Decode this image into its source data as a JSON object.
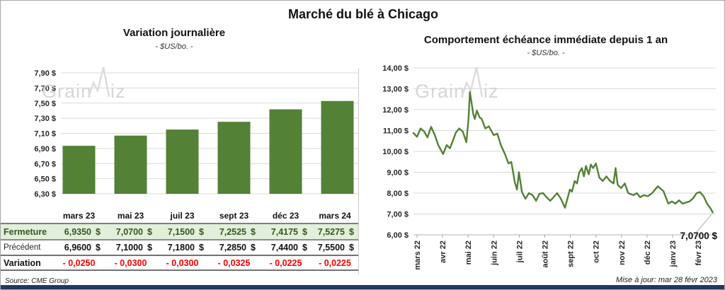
{
  "header": {
    "title": "Marché du blé à Chicago"
  },
  "footer": {
    "source": "Source: CME Group",
    "updated": "Mise à jour: mar 28 févr 2023"
  },
  "watermark": {
    "text_start": "Grain",
    "text_end": "iz"
  },
  "table": {
    "headers": [
      "mars 23",
      "mai 23",
      "juil 23",
      "sept 23",
      "déc 23",
      "mars 24"
    ],
    "rows": [
      {
        "id": "fermeture",
        "label": "Fermeture",
        "currency": "$",
        "values": [
          "6,9350",
          "7,0700",
          "7,1500",
          "7,2525",
          "7,4175",
          "7,5275"
        ]
      },
      {
        "id": "precedent",
        "label": "Précédent",
        "currency": "$",
        "values": [
          "6,9600",
          "7,1000",
          "7,1800",
          "7,2850",
          "7,4400",
          "7,5500"
        ]
      },
      {
        "id": "variation",
        "label": "Variation",
        "values": [
          "- 0,0250",
          "- 0,0300",
          "- 0,0300",
          "- 0,0325",
          "- 0,0225",
          "- 0,0225"
        ]
      }
    ]
  },
  "chart_data": [
    {
      "type": "bar",
      "title": "Variation journalière",
      "subtitle": "- $US/bo. -",
      "categories": [
        "mars 23",
        "mai 23",
        "juil 23",
        "sept 23",
        "déc 23",
        "mars 24"
      ],
      "values": [
        6.935,
        7.07,
        7.15,
        7.2525,
        7.4175,
        7.5275
      ],
      "ylim": [
        6.3,
        7.9
      ],
      "ytick_step": 0.2,
      "bar_color": "#538135",
      "grid_color": "#d9d9d9"
    },
    {
      "type": "line",
      "title": "Comportement échéance immédiate depuis 1 an",
      "subtitle": "- $US/bo. -",
      "x_labels": [
        "mars 22",
        "avr 22",
        "mai 22",
        "juin 22",
        "juil 22",
        "août 22",
        "sept 22",
        "oct 22",
        "nov 22",
        "déc 22",
        "janv 23",
        "févr 23"
      ],
      "ylim": [
        6,
        14
      ],
      "ytick_step": 1,
      "line_color": "#538135",
      "grid_color": "#d9d9d9",
      "end_label": "7,0700 $",
      "end_value": 7.07,
      "points": [
        [
          -0.14,
          10.88
        ],
        [
          0,
          10.7
        ],
        [
          0.14,
          11.1
        ],
        [
          0.28,
          10.95
        ],
        [
          0.41,
          10.67
        ],
        [
          0.55,
          11.18
        ],
        [
          0.69,
          10.8
        ],
        [
          0.83,
          10.3
        ],
        [
          1.02,
          9.87
        ],
        [
          1.16,
          10.3
        ],
        [
          1.29,
          10.15
        ],
        [
          1.52,
          10.9
        ],
        [
          1.65,
          11.1
        ],
        [
          1.79,
          10.95
        ],
        [
          1.93,
          10.44
        ],
        [
          2.01,
          11.5
        ],
        [
          2.07,
          12.85
        ],
        [
          2.15,
          12.2
        ],
        [
          2.2,
          11.8
        ],
        [
          2.26,
          11.55
        ],
        [
          2.34,
          11.95
        ],
        [
          2.45,
          11.63
        ],
        [
          2.53,
          11.56
        ],
        [
          2.67,
          11.1
        ],
        [
          2.81,
          11.2
        ],
        [
          3.0,
          10.78
        ],
        [
          3.14,
          10.85
        ],
        [
          3.28,
          10.3
        ],
        [
          3.44,
          9.87
        ],
        [
          3.58,
          9.42
        ],
        [
          3.69,
          9.49
        ],
        [
          3.83,
          8.5
        ],
        [
          3.91,
          8.17
        ],
        [
          3.99,
          9.0
        ],
        [
          4.1,
          8.07
        ],
        [
          4.24,
          7.73
        ],
        [
          4.38,
          8.0
        ],
        [
          4.52,
          7.9
        ],
        [
          4.66,
          7.63
        ],
        [
          4.79,
          7.97
        ],
        [
          4.93,
          8.0
        ],
        [
          5.07,
          7.8
        ],
        [
          5.21,
          7.63
        ],
        [
          5.34,
          7.8
        ],
        [
          5.48,
          8.0
        ],
        [
          5.62,
          7.75
        ],
        [
          5.79,
          7.3
        ],
        [
          5.98,
          8.17
        ],
        [
          6.06,
          8.07
        ],
        [
          6.17,
          8.58
        ],
        [
          6.26,
          8.46
        ],
        [
          6.34,
          8.97
        ],
        [
          6.45,
          9.2
        ],
        [
          6.53,
          8.8
        ],
        [
          6.61,
          9.3
        ],
        [
          6.72,
          8.9
        ],
        [
          6.8,
          9.37
        ],
        [
          6.89,
          9.2
        ],
        [
          7.0,
          9.42
        ],
        [
          7.13,
          8.75
        ],
        [
          7.27,
          8.58
        ],
        [
          7.41,
          8.8
        ],
        [
          7.55,
          8.58
        ],
        [
          7.69,
          8.46
        ],
        [
          7.77,
          9.2
        ],
        [
          7.85,
          8.4
        ],
        [
          7.99,
          8.24
        ],
        [
          8.13,
          8.46
        ],
        [
          8.26,
          8.0
        ],
        [
          8.46,
          7.9
        ],
        [
          8.6,
          8.0
        ],
        [
          8.73,
          7.8
        ],
        [
          8.87,
          7.9
        ],
        [
          9.03,
          7.85
        ],
        [
          9.2,
          8.0
        ],
        [
          9.42,
          8.33
        ],
        [
          9.64,
          8.1
        ],
        [
          9.83,
          7.5
        ],
        [
          9.97,
          7.6
        ],
        [
          10.11,
          7.5
        ],
        [
          10.25,
          7.65
        ],
        [
          10.39,
          7.5
        ],
        [
          10.52,
          7.55
        ],
        [
          10.66,
          7.6
        ],
        [
          10.8,
          7.75
        ],
        [
          10.94,
          8.0
        ],
        [
          11.07,
          8.05
        ],
        [
          11.21,
          7.85
        ],
        [
          11.35,
          7.5
        ],
        [
          11.49,
          7.25
        ],
        [
          11.57,
          7.07
        ]
      ]
    }
  ]
}
